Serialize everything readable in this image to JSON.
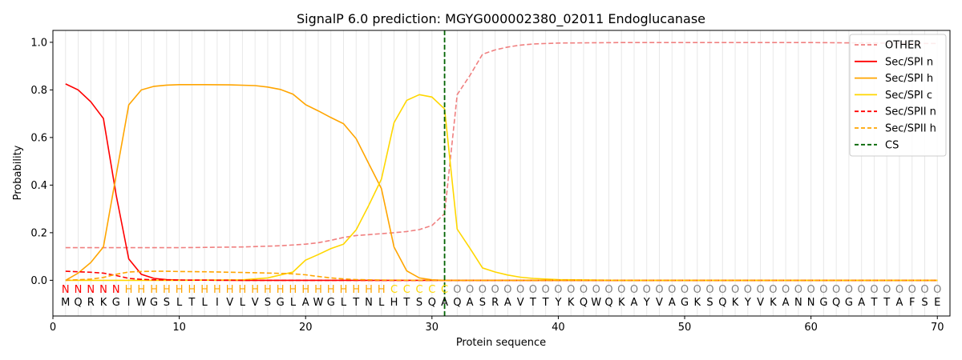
{
  "chart_data": {
    "type": "line",
    "title": "SignalP 6.0 prediction: MGYG000002380_02011 Endoglucanase",
    "xlabel": "Protein sequence",
    "ylabel": "Probability",
    "xlim": [
      0,
      71
    ],
    "ylim": [
      -0.15,
      1.05
    ],
    "x_ticks": [
      0,
      10,
      20,
      30,
      40,
      50,
      60,
      70
    ],
    "y_ticks": [
      "0.0",
      "0.2",
      "0.4",
      "0.6",
      "0.8",
      "1.0"
    ],
    "grid": "vertical lines at each residue",
    "legend_position": "top-right",
    "sequence": [
      "M",
      "Q",
      "R",
      "K",
      "G",
      "I",
      "W",
      "G",
      "S",
      "L",
      "T",
      "L",
      "I",
      "V",
      "L",
      "V",
      "S",
      "G",
      "L",
      "A",
      "W",
      "G",
      "L",
      "T",
      "N",
      "L",
      "H",
      "T",
      "S",
      "Q",
      "A",
      "Q",
      "A",
      "S",
      "R",
      "A",
      "V",
      "T",
      "T",
      "Y",
      "K",
      "Q",
      "W",
      "Q",
      "K",
      "A",
      "Y",
      "V",
      "A",
      "G",
      "K",
      "S",
      "Q",
      "K",
      "Y",
      "V",
      "K",
      "A",
      "N",
      "N",
      "G",
      "Q",
      "G",
      "A",
      "T",
      "T",
      "A",
      "F",
      "S",
      "E"
    ],
    "region_labels": [
      "N",
      "N",
      "N",
      "N",
      "N",
      "H",
      "H",
      "H",
      "H",
      "H",
      "H",
      "H",
      "H",
      "H",
      "H",
      "H",
      "H",
      "H",
      "H",
      "H",
      "H",
      "H",
      "H",
      "H",
      "H",
      "H",
      "C",
      "C",
      "C",
      "C",
      "C",
      "O",
      "O",
      "O",
      "O",
      "O",
      "O",
      "O",
      "O",
      "O",
      "O",
      "O",
      "O",
      "O",
      "O",
      "O",
      "O",
      "O",
      "O",
      "O",
      "O",
      "O",
      "O",
      "O",
      "O",
      "O",
      "O",
      "O",
      "O",
      "O",
      "O",
      "O",
      "O",
      "O",
      "O",
      "O",
      "O",
      "O",
      "O",
      "O"
    ],
    "region_colors": {
      "N": "#ff0000",
      "H": "#ffa500",
      "C": "#ffd700",
      "O": "#808080"
    },
    "cleavage_site": 31,
    "series": [
      {
        "name": "OTHER",
        "color": "#f08080",
        "dash": true,
        "x": [
          1,
          5,
          10,
          15,
          18,
          20,
          21,
          22,
          23,
          24,
          25,
          26,
          27,
          28,
          29,
          30,
          31,
          32,
          33,
          34,
          35,
          36,
          37,
          38,
          40,
          45,
          50,
          55,
          60,
          70
        ],
        "values": [
          0.137,
          0.137,
          0.137,
          0.14,
          0.145,
          0.152,
          0.158,
          0.168,
          0.18,
          0.188,
          0.192,
          0.196,
          0.2,
          0.205,
          0.213,
          0.23,
          0.28,
          0.78,
          0.86,
          0.95,
          0.968,
          0.98,
          0.988,
          0.993,
          0.997,
          0.999,
          0.999,
          0.999,
          0.999,
          0.995
        ]
      },
      {
        "name": "Sec/SPI n",
        "color": "#ff0000",
        "dash": false,
        "x": [
          1,
          2,
          3,
          4,
          5,
          6,
          7,
          8,
          9,
          10,
          15,
          20,
          25,
          30,
          35,
          70
        ],
        "values": [
          0.825,
          0.8,
          0.75,
          0.68,
          0.36,
          0.09,
          0.025,
          0.008,
          0.003,
          0.001,
          0.0,
          0.0,
          0.0,
          0.0,
          0.0,
          0.0
        ]
      },
      {
        "name": "Sec/SPI h",
        "color": "#ffa500",
        "dash": false,
        "x": [
          1,
          2,
          3,
          4,
          5,
          6,
          7,
          8,
          9,
          10,
          12,
          14,
          16,
          17,
          18,
          19,
          20,
          21,
          22,
          23,
          24,
          25,
          26,
          27,
          28,
          29,
          30,
          31,
          35,
          70
        ],
        "values": [
          0.0,
          0.03,
          0.075,
          0.14,
          0.44,
          0.737,
          0.8,
          0.815,
          0.82,
          0.822,
          0.822,
          0.821,
          0.818,
          0.812,
          0.802,
          0.782,
          0.738,
          0.712,
          0.684,
          0.658,
          0.595,
          0.49,
          0.385,
          0.14,
          0.04,
          0.01,
          0.002,
          0.0,
          0.0,
          0.0
        ]
      },
      {
        "name": "Sec/SPI c",
        "color": "#ffd700",
        "dash": false,
        "x": [
          1,
          10,
          15,
          17,
          19,
          20,
          21,
          22,
          23,
          24,
          25,
          26,
          27,
          28,
          29,
          30,
          31,
          32,
          33,
          34,
          35,
          36,
          37,
          38,
          40,
          45,
          70
        ],
        "values": [
          0.0,
          0.0,
          0.002,
          0.01,
          0.035,
          0.085,
          0.108,
          0.133,
          0.152,
          0.212,
          0.315,
          0.425,
          0.662,
          0.756,
          0.78,
          0.77,
          0.72,
          0.215,
          0.135,
          0.052,
          0.035,
          0.022,
          0.013,
          0.008,
          0.003,
          0.0,
          0.0
        ]
      },
      {
        "name": "Sec/SPII n",
        "color": "#ff0000",
        "dash": true,
        "x": [
          1,
          2,
          3,
          4,
          5,
          6,
          7,
          8,
          10,
          15,
          20,
          70
        ],
        "values": [
          0.038,
          0.036,
          0.034,
          0.03,
          0.02,
          0.008,
          0.004,
          0.002,
          0.001,
          0.0,
          0.0,
          0.0
        ]
      },
      {
        "name": "Sec/SPII h",
        "color": "#ffa500",
        "dash": true,
        "x": [
          1,
          3,
          4,
          5,
          6,
          7,
          8,
          9,
          10,
          12,
          14,
          16,
          18,
          19,
          20,
          21,
          22,
          23,
          24,
          25,
          26,
          30,
          70
        ],
        "values": [
          0.0,
          0.005,
          0.012,
          0.025,
          0.035,
          0.037,
          0.038,
          0.038,
          0.037,
          0.036,
          0.034,
          0.032,
          0.029,
          0.027,
          0.023,
          0.016,
          0.01,
          0.006,
          0.003,
          0.002,
          0.001,
          0.0,
          0.0
        ]
      },
      {
        "name": "CS",
        "color": "#006400",
        "dash": true
      }
    ]
  }
}
